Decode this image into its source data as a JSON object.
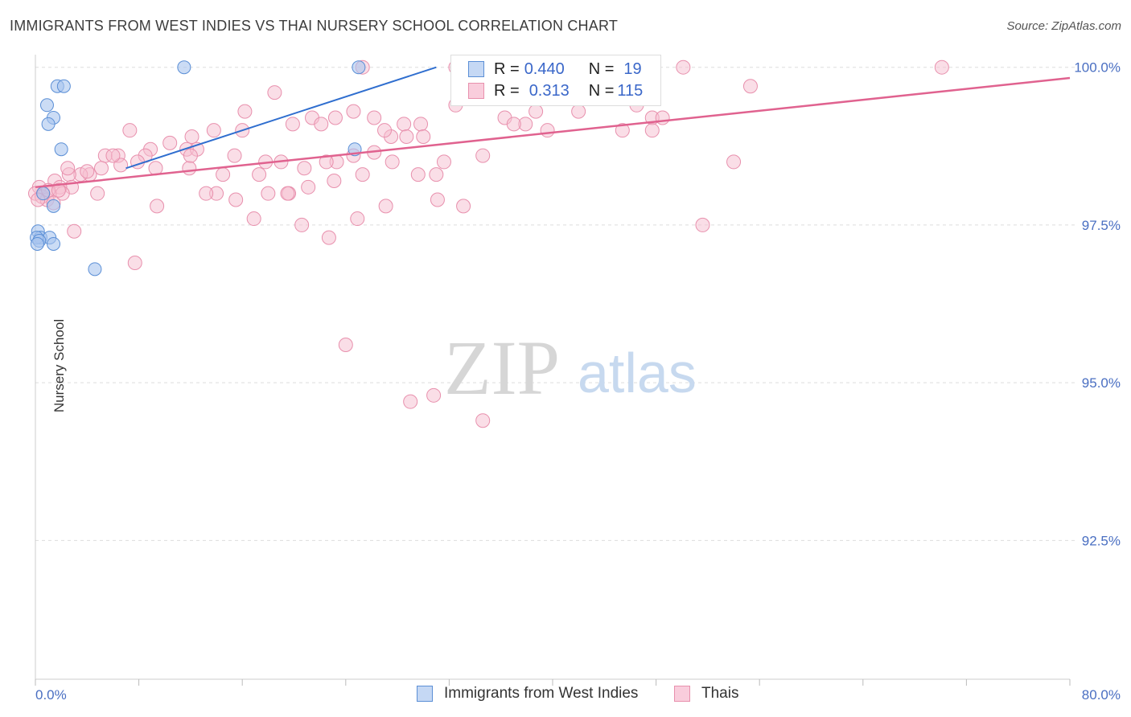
{
  "title": "IMMIGRANTS FROM WEST INDIES VS THAI NURSERY SCHOOL CORRELATION CHART",
  "source": "Source: ZipAtlas.com",
  "watermark": {
    "zip": "ZIP",
    "atlas": "atlas"
  },
  "legend_stats": {
    "west_indies": {
      "r_label": "R = ",
      "r_value": "0.440",
      "n_label": "N = ",
      "n_value": "19"
    },
    "thai": {
      "r_label": "R = ",
      "r_value": "0.313",
      "n_label": "N = ",
      "n_value": "115"
    }
  },
  "bottom_legend": {
    "west_indies": "Immigrants from West Indies",
    "thai": "Thais"
  },
  "colors": {
    "blue_fill": "#a9c4ee",
    "blue_stroke": "#5b8fd6",
    "blue_line": "#2f6ecf",
    "pink_fill": "#f6bdd0",
    "pink_stroke": "#e890ad",
    "pink_line": "#e0628f",
    "grid": "#dddddd",
    "tick_text": "#4a6fc2"
  },
  "chart_data": {
    "type": "scatter",
    "title": "IMMIGRANTS FROM WEST INDIES VS THAI NURSERY SCHOOL CORRELATION CHART",
    "xlabel": "",
    "ylabel": "Nursery School",
    "xlim": [
      0,
      80
    ],
    "ylim": [
      90.3,
      100.2
    ],
    "x_tick_labels": [
      "0.0%",
      "80.0%"
    ],
    "y_ticks": [
      92.5,
      95.0,
      97.5,
      100.0
    ],
    "y_tick_labels": [
      "92.5%",
      "95.0%",
      "97.5%",
      "100.0%"
    ],
    "series": [
      {
        "name": "Immigrants from West Indies",
        "R": 0.44,
        "N": 19,
        "points": [
          [
            11.5,
            100.0
          ],
          [
            1.7,
            99.7
          ],
          [
            2.2,
            99.7
          ],
          [
            0.9,
            99.4
          ],
          [
            1.4,
            99.2
          ],
          [
            1.0,
            99.1
          ],
          [
            2.0,
            98.7
          ],
          [
            24.7,
            98.7
          ],
          [
            0.6,
            98.0
          ],
          [
            1.4,
            97.8
          ],
          [
            0.2,
            97.4
          ],
          [
            0.4,
            97.3
          ],
          [
            1.1,
            97.3
          ],
          [
            0.1,
            97.3
          ],
          [
            0.3,
            97.25
          ],
          [
            0.15,
            97.2
          ],
          [
            1.4,
            97.2
          ],
          [
            4.6,
            96.8
          ],
          [
            25.0,
            100.0
          ]
        ],
        "trend": {
          "x0": 7.0,
          "y0": 98.4,
          "x1": 31.0,
          "y1": 100.0
        }
      },
      {
        "name": "Thais",
        "R": 0.313,
        "N": 115,
        "points": [
          [
            25.3,
            100.0
          ],
          [
            32.5,
            100.0
          ],
          [
            33.8,
            100.0
          ],
          [
            39.4,
            100.0
          ],
          [
            41.0,
            100.0
          ],
          [
            50.1,
            100.0
          ],
          [
            70.1,
            100.0
          ],
          [
            55.3,
            99.7
          ],
          [
            18.5,
            99.6
          ],
          [
            34.0,
            99.5
          ],
          [
            32.5,
            99.4
          ],
          [
            16.2,
            99.3
          ],
          [
            24.6,
            99.3
          ],
          [
            38.7,
            99.3
          ],
          [
            36.3,
            99.2
          ],
          [
            47.7,
            99.2
          ],
          [
            23.2,
            99.2
          ],
          [
            26.2,
            99.2
          ],
          [
            21.4,
            99.2
          ],
          [
            22.1,
            99.1
          ],
          [
            29.8,
            99.1
          ],
          [
            28.5,
            99.1
          ],
          [
            19.9,
            99.1
          ],
          [
            37.9,
            99.1
          ],
          [
            7.3,
            99.0
          ],
          [
            13.8,
            99.0
          ],
          [
            12.1,
            98.9
          ],
          [
            27.5,
            98.9
          ],
          [
            45.4,
            99.0
          ],
          [
            47.7,
            99.0
          ],
          [
            30.0,
            98.9
          ],
          [
            37.0,
            99.1
          ],
          [
            8.9,
            98.7
          ],
          [
            10.4,
            98.8
          ],
          [
            11.7,
            98.7
          ],
          [
            12.5,
            98.7
          ],
          [
            5.4,
            98.6
          ],
          [
            6.4,
            98.6
          ],
          [
            8.5,
            98.6
          ],
          [
            15.4,
            98.6
          ],
          [
            24.6,
            98.6
          ],
          [
            26.2,
            98.65
          ],
          [
            34.6,
            98.6
          ],
          [
            17.8,
            98.5
          ],
          [
            19.0,
            98.5
          ],
          [
            23.3,
            98.5
          ],
          [
            27.6,
            98.5
          ],
          [
            31.6,
            98.5
          ],
          [
            6.6,
            98.45
          ],
          [
            7.9,
            98.5
          ],
          [
            54.0,
            98.5
          ],
          [
            9.3,
            98.4
          ],
          [
            4.2,
            98.3
          ],
          [
            3.5,
            98.3
          ],
          [
            5.1,
            98.4
          ],
          [
            11.9,
            98.4
          ],
          [
            14.5,
            98.3
          ],
          [
            17.3,
            98.3
          ],
          [
            20.8,
            98.4
          ],
          [
            25.3,
            98.3
          ],
          [
            29.6,
            98.3
          ],
          [
            2.6,
            98.3
          ],
          [
            4.0,
            98.35
          ],
          [
            1.5,
            98.2
          ],
          [
            2.8,
            98.1
          ],
          [
            1.9,
            98.1
          ],
          [
            1.1,
            98.0
          ],
          [
            0.6,
            98.0
          ],
          [
            0.3,
            98.1
          ],
          [
            0.0,
            98.0
          ],
          [
            0.5,
            97.95
          ],
          [
            0.9,
            97.9
          ],
          [
            1.4,
            97.85
          ],
          [
            2.1,
            98.0
          ],
          [
            4.8,
            98.0
          ],
          [
            14.0,
            98.0
          ],
          [
            15.5,
            97.9
          ],
          [
            18.0,
            98.0
          ],
          [
            19.6,
            98.0
          ],
          [
            21.1,
            98.1
          ],
          [
            23.1,
            98.2
          ],
          [
            9.4,
            97.8
          ],
          [
            16.9,
            97.6
          ],
          [
            20.6,
            97.5
          ],
          [
            24.9,
            97.6
          ],
          [
            27.1,
            97.8
          ],
          [
            31.1,
            97.9
          ],
          [
            33.1,
            97.8
          ],
          [
            51.6,
            97.5
          ],
          [
            22.7,
            97.3
          ],
          [
            3.0,
            97.4
          ],
          [
            7.7,
            96.9
          ],
          [
            24.0,
            95.6
          ],
          [
            29.0,
            94.7
          ],
          [
            30.8,
            94.8
          ],
          [
            34.6,
            94.4
          ],
          [
            31.0,
            98.3
          ],
          [
            28.7,
            98.9
          ],
          [
            39.6,
            99.0
          ],
          [
            42.0,
            99.3
          ],
          [
            46.5,
            99.4
          ],
          [
            35.5,
            100.0
          ],
          [
            43.6,
            99.9
          ],
          [
            1.0,
            98.05
          ],
          [
            0.2,
            97.9
          ],
          [
            1.8,
            98.05
          ],
          [
            12.0,
            98.6
          ],
          [
            13.2,
            98.0
          ],
          [
            16.0,
            99.0
          ],
          [
            19.5,
            98.0
          ],
          [
            22.5,
            98.5
          ],
          [
            27.0,
            99.0
          ],
          [
            36.8,
            99.6
          ],
          [
            48.5,
            99.2
          ],
          [
            2.5,
            98.4
          ],
          [
            6.0,
            98.6
          ]
        ],
        "trend": {
          "x0": 0.0,
          "y0": 98.1,
          "x1": 80.0,
          "y1": 99.83
        }
      }
    ]
  }
}
